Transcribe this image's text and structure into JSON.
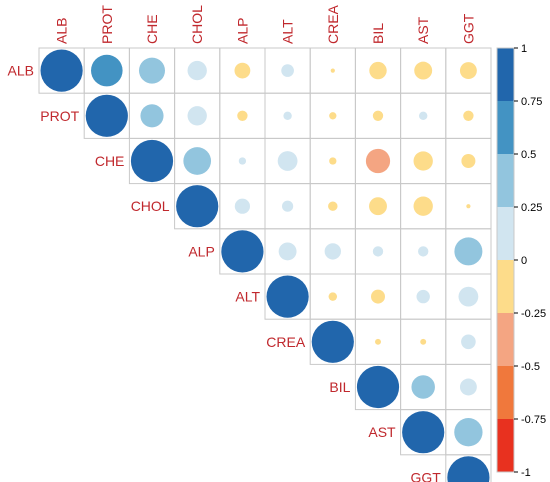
{
  "chart_data": {
    "type": "heatmap",
    "subtype": "correlation-upper-triangle-circles",
    "variables": [
      "ALB",
      "PROT",
      "CHE",
      "CHOL",
      "ALP",
      "ALT",
      "CREA",
      "BIL",
      "AST",
      "GGT"
    ],
    "matrix": [
      [
        1.0,
        0.56,
        0.38,
        0.21,
        -0.14,
        0.09,
        -0.01,
        -0.17,
        -0.18,
        -0.16
      ],
      [
        0.56,
        1.0,
        0.3,
        0.21,
        -0.06,
        0.04,
        -0.03,
        -0.06,
        0.04,
        -0.06
      ],
      [
        0.38,
        0.3,
        1.0,
        0.43,
        0.03,
        0.22,
        -0.03,
        -0.33,
        -0.21,
        -0.11
      ],
      [
        0.21,
        0.21,
        0.43,
        1.0,
        0.13,
        0.07,
        -0.05,
        -0.18,
        -0.21,
        -0.01
      ],
      [
        -0.14,
        -0.06,
        0.03,
        0.13,
        1.0,
        0.18,
        0.15,
        0.06,
        0.06,
        0.44
      ],
      [
        0.09,
        0.04,
        0.22,
        0.07,
        0.18,
        1.0,
        -0.04,
        -0.11,
        0.1,
        0.22
      ],
      [
        -0.01,
        -0.03,
        -0.03,
        -0.05,
        0.15,
        -0.04,
        1.0,
        -0.02,
        -0.02,
        0.12
      ],
      [
        -0.17,
        -0.06,
        -0.33,
        -0.18,
        0.06,
        -0.11,
        -0.02,
        1.0,
        0.31,
        0.16
      ],
      [
        -0.18,
        0.04,
        -0.21,
        -0.21,
        0.06,
        0.1,
        -0.02,
        0.31,
        1.0,
        0.45
      ],
      [
        -0.16,
        -0.06,
        -0.11,
        -0.01,
        0.44,
        0.22,
        0.12,
        0.16,
        0.45,
        1.0
      ]
    ],
    "color_scale": {
      "min": -1,
      "max": 1,
      "tick_labels": [
        "1",
        "0.75",
        "0.5",
        "0.25",
        "0",
        "-0.25",
        "-0.5",
        "-0.75",
        "-1"
      ],
      "bins": [
        {
          "from": 0.75,
          "to": 1.0,
          "color": "#2166ac"
        },
        {
          "from": 0.5,
          "to": 0.75,
          "color": "#4393c3"
        },
        {
          "from": 0.25,
          "to": 0.5,
          "color": "#92c5de"
        },
        {
          "from": 0.0,
          "to": 0.25,
          "color": "#d1e5f0"
        },
        {
          "from": -0.25,
          "to": 0.0,
          "color": "#fddc8a"
        },
        {
          "from": -0.5,
          "to": -0.25,
          "color": "#f4a582"
        },
        {
          "from": -0.75,
          "to": -0.5,
          "color": "#f0783c"
        },
        {
          "from": -1.0,
          "to": -0.75,
          "color": "#e8311f"
        }
      ]
    },
    "label_color": "#c0282d",
    "grid_color": "#c8c8c8",
    "legend_position": "right",
    "grid": true
  }
}
